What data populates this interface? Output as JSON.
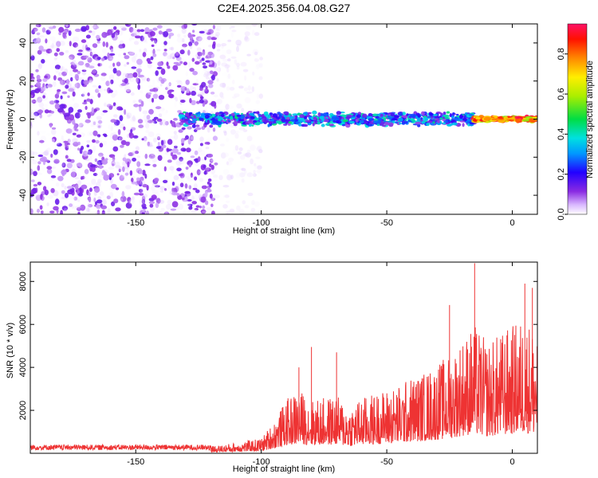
{
  "title": "C2E4.2025.356.04.08.G27",
  "chart_data": [
    {
      "type": "heatmap",
      "xlabel": "Height of straight line (km)",
      "ylabel": "Frequency (Hz)",
      "xlim": [
        -192,
        10
      ],
      "ylim": [
        -50,
        50
      ],
      "x_ticks": [
        -150,
        -100,
        -50,
        0
      ],
      "y_ticks": [
        -40,
        -20,
        0,
        20,
        40
      ],
      "colorbar": {
        "label": "Normalized spectral amplitude",
        "range": [
          0,
          0.95
        ],
        "ticks": [
          0.0,
          0.2,
          0.4,
          0.6,
          0.8
        ]
      },
      "description_regions": [
        {
          "x_range": [
            -192,
            -118
          ],
          "freq_range": [
            -50,
            50
          ],
          "amplitude_range": [
            0.0,
            0.15
          ]
        },
        {
          "x_range": [
            -118,
            -100
          ],
          "freq_range": [
            -50,
            50
          ],
          "amplitude_range": [
            0.0,
            0.05
          ]
        },
        {
          "x_range": [
            -132,
            -15
          ],
          "freq_range": [
            -4,
            4
          ],
          "amplitude_range": [
            0.1,
            0.45
          ]
        },
        {
          "x_range": [
            -15,
            10
          ],
          "freq_range": [
            -1.5,
            1.5
          ],
          "amplitude_range": [
            0.5,
            0.95
          ]
        }
      ]
    },
    {
      "type": "line",
      "xlabel": "Height of straight line (km)",
      "ylabel": "SNR (10 * v/v)",
      "xlim": [
        -192,
        10
      ],
      "ylim": [
        0,
        8900
      ],
      "x_ticks": [
        -150,
        -100,
        -50,
        0
      ],
      "y_ticks": [
        2000,
        4000,
        6000,
        8000
      ],
      "color": "#ee3333",
      "envelope": {
        "x": [
          -192,
          -150,
          -120,
          -110,
          -100,
          -95,
          -90,
          -85,
          -80,
          -75,
          -70,
          -65,
          -60,
          -55,
          -50,
          -45,
          -40,
          -35,
          -30,
          -25,
          -20,
          -15,
          -10,
          -5,
          0,
          5,
          10
        ],
        "y": [
          250,
          300,
          320,
          500,
          700,
          1500,
          2500,
          3000,
          2500,
          2600,
          2700,
          2200,
          2600,
          2800,
          3000,
          3200,
          3600,
          3800,
          4200,
          4600,
          5400,
          6000,
          5200,
          5600,
          6000,
          6400,
          5800
        ]
      },
      "peaks": [
        {
          "x": -85,
          "y": 4000
        },
        {
          "x": -80,
          "y": 4950
        },
        {
          "x": -70,
          "y": 4700
        },
        {
          "x": -25,
          "y": 6900
        },
        {
          "x": -15,
          "y": 8850
        },
        {
          "x": 5,
          "y": 7900
        },
        {
          "x": 8,
          "y": 7700
        }
      ]
    }
  ]
}
